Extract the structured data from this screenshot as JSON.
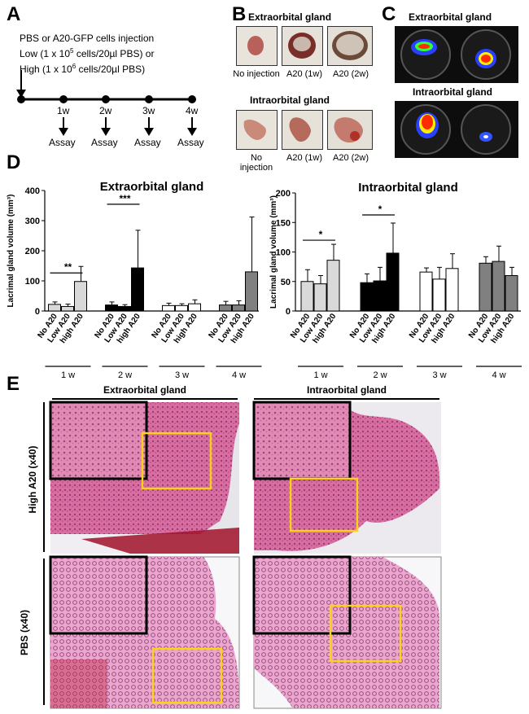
{
  "panelA": {
    "letter": "A",
    "line1": "PBS or A20-GFP cells injection",
    "line2": "Low (1 x 10",
    "line2_sup": "5",
    "line2_end": " cells/20µl PBS) or",
    "line3": "High (1 x 10",
    "line3_sup": "6",
    "line3_end": " cells/20µl PBS)",
    "weeks": [
      "1w",
      "2w",
      "3w",
      "4w"
    ],
    "assay_label": "Assay"
  },
  "panelB": {
    "letter": "B",
    "top_title": "Extraorbital gland",
    "top_labels": [
      "No injection",
      "A20 (1w)",
      "A20 (2w)"
    ],
    "bottom_title": "Intraorbital gland",
    "bottom_labels": [
      "No injection",
      "A20 (1w)",
      "A20 (2w)"
    ]
  },
  "panelC": {
    "letter": "C",
    "top_title": "Extraorbital gland",
    "bottom_title": "Intraorbital gland"
  },
  "panelD": {
    "letter": "D"
  },
  "panelE": {
    "letter": "E",
    "col_left": "Extraorbital gland",
    "col_right": "Intraorbital gland",
    "row_top": "High A20 (x40)",
    "row_bottom": "PBS (x40)"
  },
  "chart_data": [
    {
      "type": "bar",
      "title": "Extraorbital gland",
      "ylabel": "Lacrimal gland volume (mm³)",
      "ylim": [
        0,
        400
      ],
      "yticks": [
        0,
        100,
        200,
        300,
        400
      ],
      "groups": [
        "1 w",
        "2 w",
        "3 w",
        "4 w"
      ],
      "categories": [
        "No A20",
        "Low A20",
        "high A20"
      ],
      "group_colors": [
        "#d9d9d9",
        "#000000",
        "#ffffff",
        "#808080"
      ],
      "values": [
        [
          22,
          15,
          98
        ],
        [
          20,
          15,
          143
        ],
        [
          18,
          18,
          24
        ],
        [
          20,
          20,
          130
        ]
      ],
      "errors": [
        [
          8,
          8,
          50
        ],
        [
          10,
          6,
          125
        ],
        [
          8,
          6,
          13
        ],
        [
          12,
          14,
          182
        ]
      ],
      "significance": [
        {
          "group": "1 w",
          "label": "**"
        },
        {
          "group": "2 w",
          "label": "***"
        }
      ]
    },
    {
      "type": "bar",
      "title": "Intraorbital gland",
      "ylabel": "Lacrimal gland volume (mm³)",
      "ylim": [
        0,
        200
      ],
      "yticks": [
        0,
        50,
        100,
        150,
        200
      ],
      "groups": [
        "1 w",
        "2 w",
        "3 w",
        "4 w"
      ],
      "categories": [
        "No A20",
        "Low A20",
        "high A20"
      ],
      "group_colors": [
        "#d9d9d9",
        "#000000",
        "#ffffff",
        "#808080"
      ],
      "values": [
        [
          50,
          46,
          86
        ],
        [
          48,
          51,
          98
        ],
        [
          66,
          54,
          72
        ],
        [
          81,
          84,
          60
        ]
      ],
      "errors": [
        [
          20,
          14,
          27
        ],
        [
          15,
          23,
          51
        ],
        [
          7,
          20,
          25
        ],
        [
          11,
          26,
          14
        ]
      ],
      "significance": [
        {
          "group": "1 w",
          "label": "*"
        },
        {
          "group": "2 w",
          "label": "*"
        }
      ]
    }
  ]
}
